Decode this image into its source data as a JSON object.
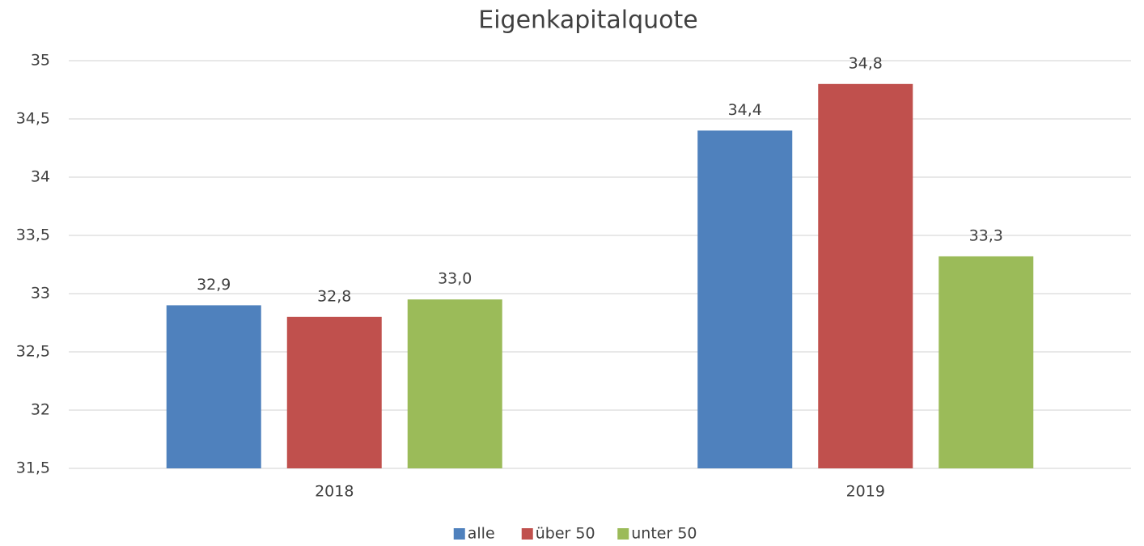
{
  "chart_data": {
    "type": "bar",
    "title": "Eigenkapitalquote",
    "categories": [
      "2018",
      "2019"
    ],
    "series": [
      {
        "name": "alle",
        "color": "#4f81bd",
        "values": [
          32.9,
          34.4
        ],
        "value_labels": [
          "32,9",
          "34,4"
        ]
      },
      {
        "name": "über 50",
        "color": "#c0504d",
        "values": [
          32.8,
          34.8
        ],
        "value_labels": [
          "32,8",
          "34,8"
        ]
      },
      {
        "name": "unter 50",
        "color": "#9bbb59",
        "values": [
          32.95,
          33.32
        ],
        "value_labels": [
          "33,0",
          "33,3"
        ]
      }
    ],
    "ylim": [
      31.5,
      35
    ],
    "yticks": [
      {
        "value": 31.5,
        "label": "31,5"
      },
      32,
      {
        "value": 32.5,
        "label": "32,5"
      },
      33,
      {
        "value": 33.5,
        "label": "33,5"
      },
      34,
      {
        "value": 34.5,
        "label": "34,5"
      },
      35
    ],
    "grid": true,
    "legend": "bottom"
  }
}
